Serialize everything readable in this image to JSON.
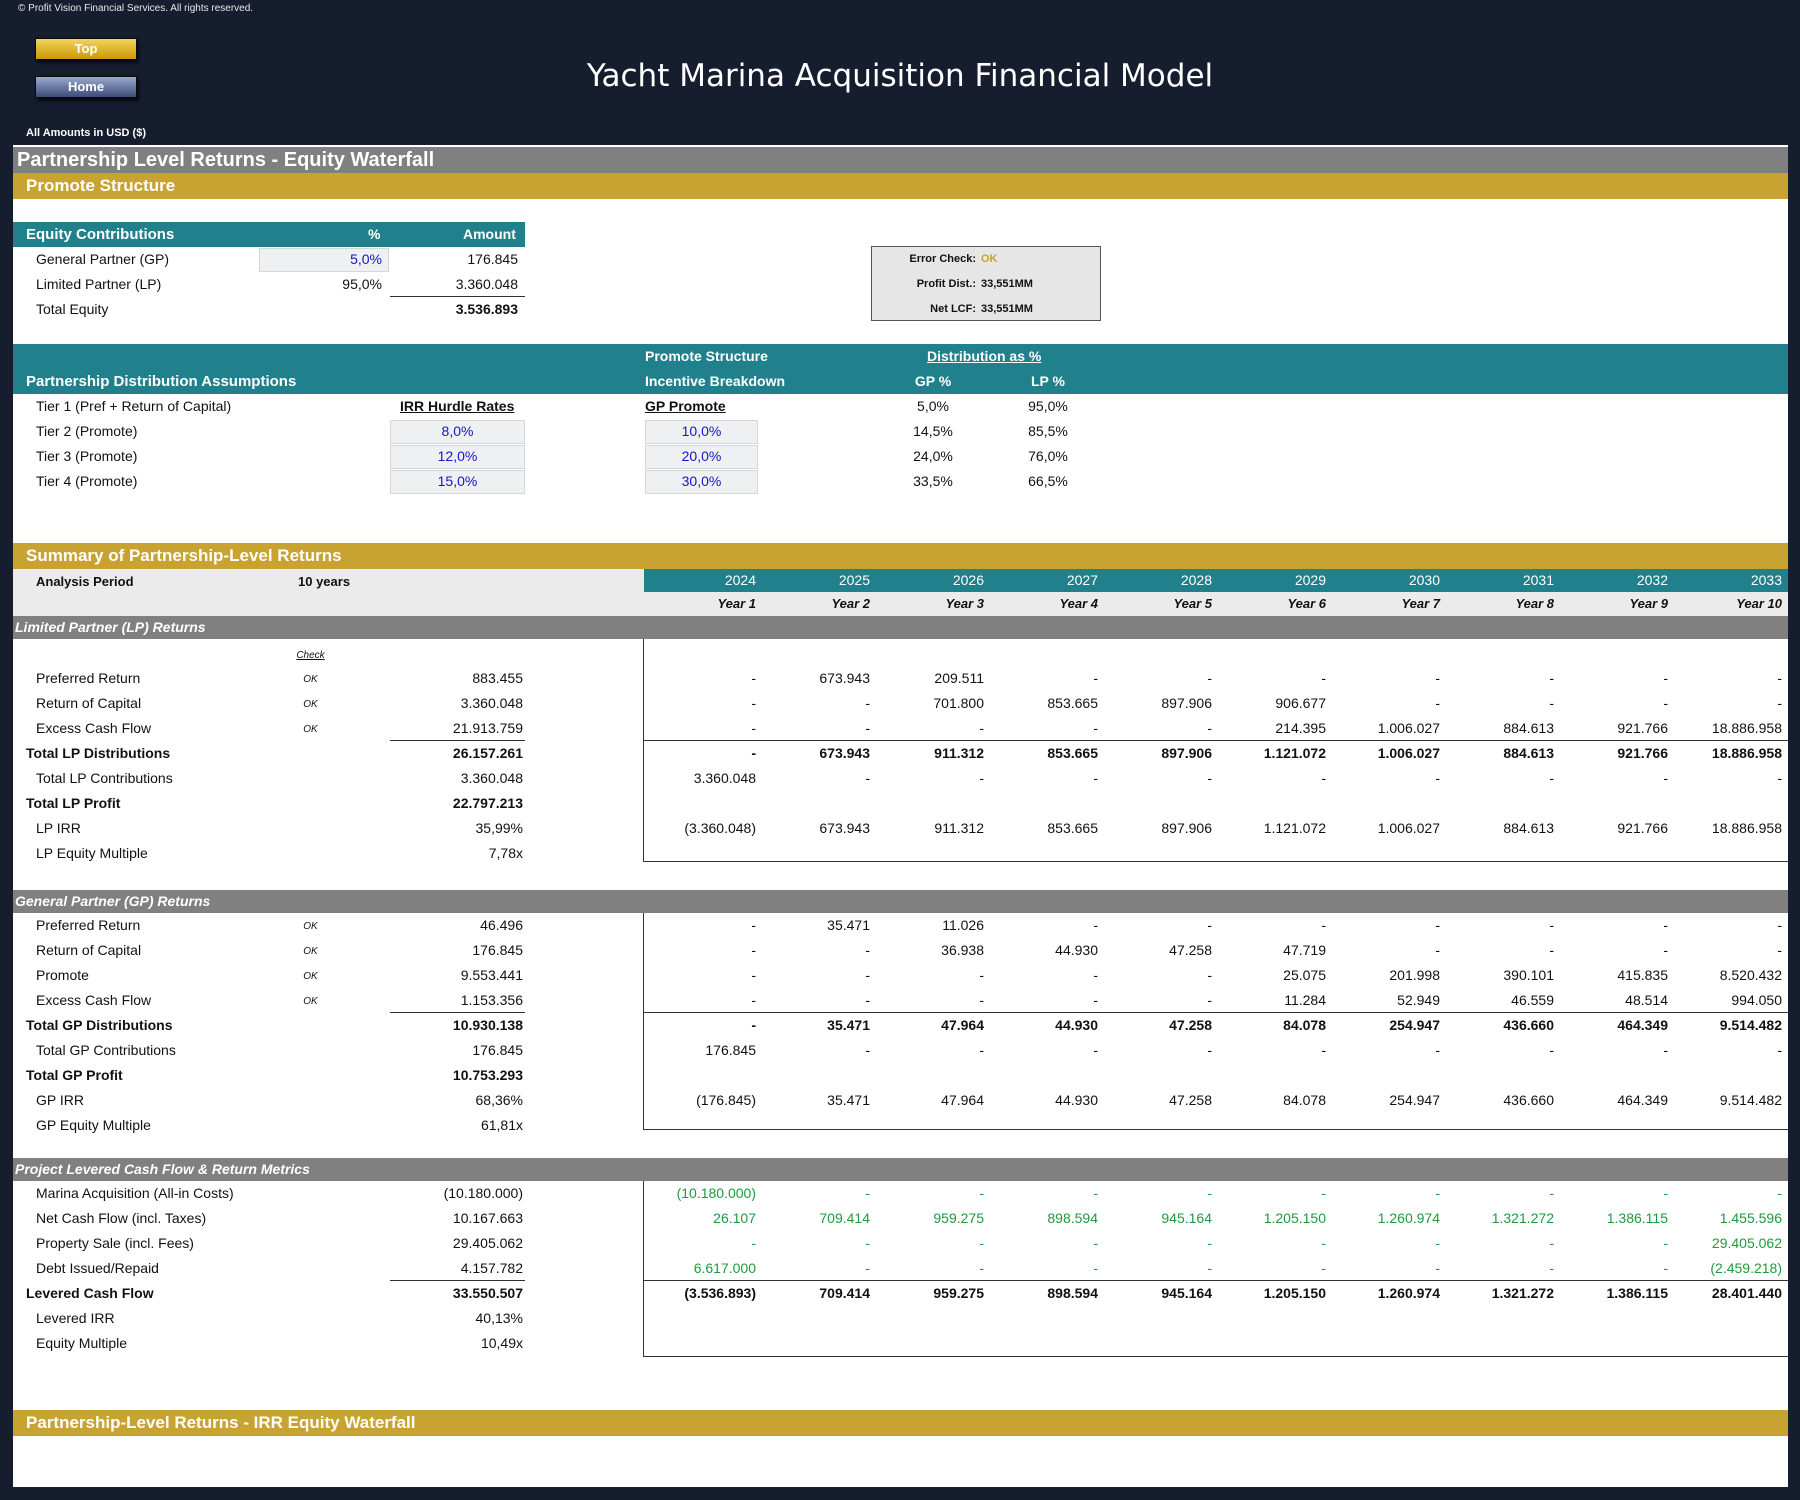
{
  "header": {
    "copyright": "© Profit Vision Financial Services. All rights reserved.",
    "top_label": "Top",
    "home_label": "Home",
    "title": "Yacht Marina Acquisition Financial Model",
    "amounts": "All Amounts in  USD ($)"
  },
  "section_title": "Partnership Level Returns - Equity Waterfall",
  "promote_header": "Promote Structure",
  "equity": {
    "header": {
      "label": "Equity Contributions",
      "pct": "%",
      "amount": "Amount"
    },
    "rows": [
      {
        "label": "General Partner (GP)",
        "pct": "5,0%",
        "amount": "176.845"
      },
      {
        "label": "Limited Partner (LP)",
        "pct": "95,0%",
        "amount": "3.360.048"
      },
      {
        "label": "Total Equity",
        "pct": "",
        "amount": "3.536.893"
      }
    ]
  },
  "errcheck": {
    "l1": "Error Check:",
    "v1": "OK",
    "l2": "Profit Dist.:",
    "v2": "33,551MM",
    "l3": "Net LCF:",
    "v3": "33,551MM"
  },
  "dist": {
    "h_promote": "Promote Structure",
    "h_dist": "Distribution as %",
    "h_label": "Partnership Distribution Assumptions",
    "h_incentive": "Incentive Breakdown",
    "h_gp": "GP %",
    "h_lp": "LP %",
    "irr_head": "IRR Hurdle Rates",
    "gp_head": "GP Promote",
    "tiers": [
      {
        "label": "Tier 1 (Pref + Return of Capital)",
        "irr": "",
        "promote": "",
        "gp": "5,0%",
        "lp": "95,0%"
      },
      {
        "label": "Tier 2 (Promote)",
        "irr": "8,0%",
        "promote": "10,0%",
        "gp": "14,5%",
        "lp": "85,5%"
      },
      {
        "label": "Tier 3 (Promote)",
        "irr": "12,0%",
        "promote": "20,0%",
        "gp": "24,0%",
        "lp": "76,0%"
      },
      {
        "label": "Tier 4 (Promote)",
        "irr": "15,0%",
        "promote": "30,0%",
        "gp": "33,5%",
        "lp": "66,5%"
      }
    ]
  },
  "summary": {
    "header": "Summary of Partnership-Level Returns",
    "analysis_label": "Analysis Period",
    "analysis_value": "10 years",
    "years": [
      "2024",
      "2025",
      "2026",
      "2027",
      "2028",
      "2029",
      "2030",
      "2031",
      "2032",
      "2033"
    ],
    "yearlabels": [
      "Year 1",
      "Year 2",
      "Year 3",
      "Year 4",
      "Year 5",
      "Year 6",
      "Year 7",
      "Year 8",
      "Year 9",
      "Year 10"
    ]
  },
  "lp": {
    "title": "Limited Partner (LP) Returns",
    "check_label": "Check",
    "rows": [
      {
        "label": "Preferred Return",
        "check": "OK",
        "total": "883.455",
        "vals": [
          "-",
          "673.943",
          "209.511",
          "-",
          "-",
          "-",
          "-",
          "-",
          "-",
          "-"
        ]
      },
      {
        "label": "Return of Capital",
        "check": "OK",
        "total": "3.360.048",
        "vals": [
          "-",
          "-",
          "701.800",
          "853.665",
          "897.906",
          "906.677",
          "-",
          "-",
          "-",
          "-"
        ]
      },
      {
        "label": "Excess Cash Flow",
        "check": "OK",
        "total": "21.913.759",
        "vals": [
          "-",
          "-",
          "-",
          "-",
          "-",
          "214.395",
          "1.006.027",
          "884.613",
          "921.766",
          "18.886.958"
        ]
      },
      {
        "label": "Total LP Distributions",
        "check": "",
        "total": "26.157.261",
        "vals": [
          "-",
          "673.943",
          "911.312",
          "853.665",
          "897.906",
          "1.121.072",
          "1.006.027",
          "884.613",
          "921.766",
          "18.886.958"
        ]
      },
      {
        "label": "Total LP Contributions",
        "check": "",
        "total": "3.360.048",
        "vals": [
          "3.360.048",
          "-",
          "-",
          "-",
          "-",
          "-",
          "-",
          "-",
          "-",
          "-"
        ]
      },
      {
        "label": "Total LP Profit",
        "check": "",
        "total": "22.797.213",
        "vals": []
      },
      {
        "label": "LP IRR",
        "check": "",
        "total": "35,99%",
        "vals": [
          "(3.360.048)",
          "673.943",
          "911.312",
          "853.665",
          "897.906",
          "1.121.072",
          "1.006.027",
          "884.613",
          "921.766",
          "18.886.958"
        ]
      },
      {
        "label": "LP Equity Multiple",
        "check": "",
        "total": "7,78x",
        "vals": []
      }
    ]
  },
  "gp": {
    "title": "General Partner (GP) Returns",
    "rows": [
      {
        "label": "Preferred Return",
        "check": "OK",
        "total": "46.496",
        "vals": [
          "-",
          "35.471",
          "11.026",
          "-",
          "-",
          "-",
          "-",
          "-",
          "-",
          "-"
        ]
      },
      {
        "label": "Return of Capital",
        "check": "OK",
        "total": "176.845",
        "vals": [
          "-",
          "-",
          "36.938",
          "44.930",
          "47.258",
          "47.719",
          "-",
          "-",
          "-",
          "-"
        ]
      },
      {
        "label": "Promote",
        "check": "OK",
        "total": "9.553.441",
        "vals": [
          "-",
          "-",
          "-",
          "-",
          "-",
          "25.075",
          "201.998",
          "390.101",
          "415.835",
          "8.520.432"
        ]
      },
      {
        "label": "Excess Cash Flow",
        "check": "OK",
        "total": "1.153.356",
        "vals": [
          "-",
          "-",
          "-",
          "-",
          "-",
          "11.284",
          "52.949",
          "46.559",
          "48.514",
          "994.050"
        ]
      },
      {
        "label": "Total GP Distributions",
        "check": "",
        "total": "10.930.138",
        "vals": [
          "-",
          "35.471",
          "47.964",
          "44.930",
          "47.258",
          "84.078",
          "254.947",
          "436.660",
          "464.349",
          "9.514.482"
        ]
      },
      {
        "label": "Total GP Contributions",
        "check": "",
        "total": "176.845",
        "vals": [
          "176.845",
          "-",
          "-",
          "-",
          "-",
          "-",
          "-",
          "-",
          "-",
          "-"
        ]
      },
      {
        "label": "Total GP Profit",
        "check": "",
        "total": "10.753.293",
        "vals": []
      },
      {
        "label": "GP IRR",
        "check": "",
        "total": "68,36%",
        "vals": [
          "(176.845)",
          "35.471",
          "47.964",
          "44.930",
          "47.258",
          "84.078",
          "254.947",
          "436.660",
          "464.349",
          "9.514.482"
        ]
      },
      {
        "label": "GP Equity Multiple",
        "check": "",
        "total": "61,81x",
        "vals": []
      }
    ]
  },
  "proj": {
    "title": "Project Levered Cash Flow & Return Metrics",
    "rows": [
      {
        "label": "Marina Acquisition (All-in Costs)",
        "total": "(10.180.000)",
        "vals": [
          "(10.180.000)",
          "-",
          "-",
          "-",
          "-",
          "-",
          "-",
          "-",
          "-",
          "-"
        ]
      },
      {
        "label": "Net Cash Flow (incl. Taxes)",
        "total": "10.167.663",
        "vals": [
          "26.107",
          "709.414",
          "959.275",
          "898.594",
          "945.164",
          "1.205.150",
          "1.260.974",
          "1.321.272",
          "1.386.115",
          "1.455.596"
        ]
      },
      {
        "label": "Property Sale (incl. Fees)",
        "total": "29.405.062",
        "vals": [
          "-",
          "-",
          "-",
          "-",
          "-",
          "-",
          "-",
          "-",
          "-",
          "29.405.062"
        ]
      },
      {
        "label": "Debt Issued/Repaid",
        "total": "4.157.782",
        "vals": [
          "6.617.000",
          "-",
          "-",
          "-",
          "-",
          "-",
          "-",
          "-",
          "-",
          "(2.459.218)"
        ]
      },
      {
        "label": "Levered Cash Flow",
        "total": "33.550.507",
        "vals": [
          "(3.536.893)",
          "709.414",
          "959.275",
          "898.594",
          "945.164",
          "1.205.150",
          "1.260.974",
          "1.321.272",
          "1.386.115",
          "28.401.440"
        ]
      },
      {
        "label": "Levered IRR",
        "total": "40,13%",
        "vals": []
      },
      {
        "label": "Equity Multiple",
        "total": "10,49x",
        "vals": []
      }
    ]
  },
  "footer_header": "Partnership-Level Returns - IRR Equity Waterfall"
}
